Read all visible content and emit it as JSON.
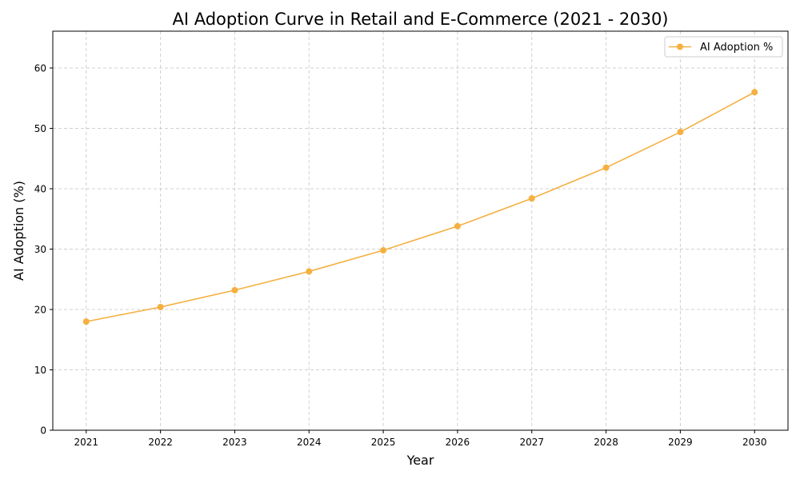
{
  "chart_data": {
    "type": "line",
    "title": "AI Adoption Curve in Retail and E-Commerce (2021 - 2030)",
    "xlabel": "Year",
    "ylabel": "AI Adoption (%)",
    "x": [
      2021,
      2022,
      2023,
      2024,
      2025,
      2026,
      2027,
      2028,
      2029,
      2030
    ],
    "series": [
      {
        "name": "AI Adoption %",
        "values": [
          18.0,
          20.4,
          23.2,
          26.3,
          29.8,
          33.8,
          38.4,
          43.5,
          49.4,
          56.0
        ],
        "color": "#f5b041",
        "marker": "circle"
      }
    ],
    "xlim": [
      2020.55,
      2030.45
    ],
    "ylim": [
      0,
      66.1
    ],
    "xticks": [
      "2021",
      "2022",
      "2023",
      "2024",
      "2025",
      "2026",
      "2027",
      "2028",
      "2029",
      "2030"
    ],
    "yticks": [
      "0",
      "10",
      "20",
      "30",
      "40",
      "50",
      "60"
    ],
    "grid": true,
    "grid_style": "dashed",
    "legend": "top-right"
  }
}
